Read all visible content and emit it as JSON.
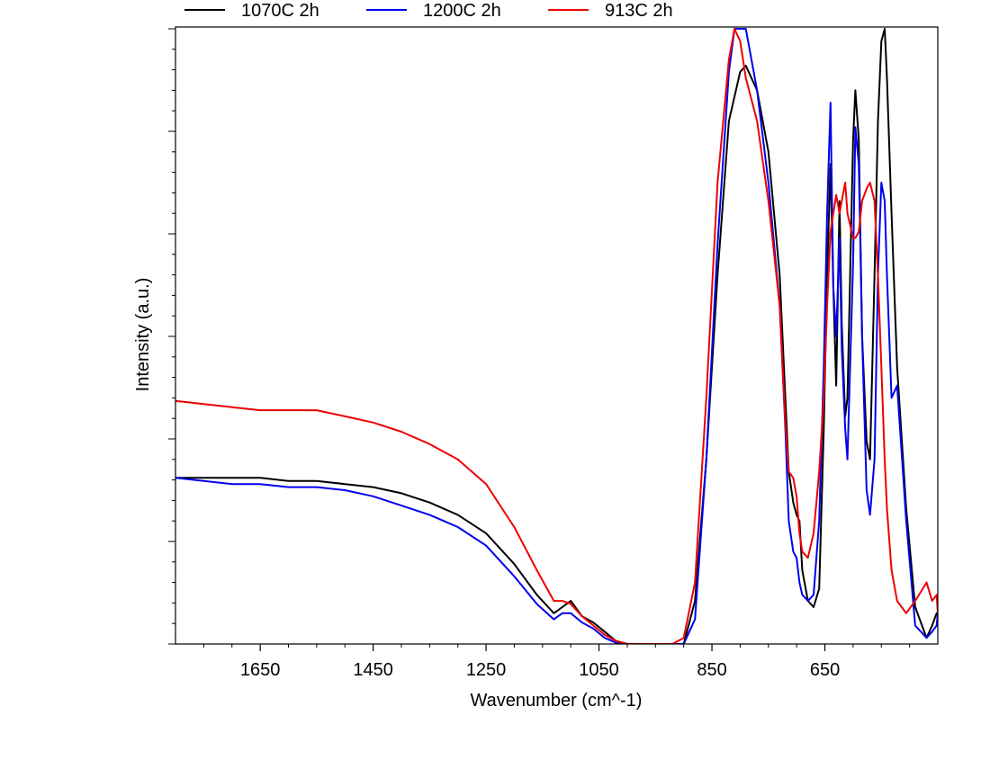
{
  "chart_data": {
    "type": "line",
    "title": "",
    "xlabel": "Wavenumber (cm^-1)",
    "ylabel": "Intensity (a.u.)",
    "x_reversed": true,
    "xlim": [
      1800,
      450
    ],
    "ylim": [
      0,
      1
    ],
    "xticks": [
      1650,
      1450,
      1250,
      1050,
      850,
      650
    ],
    "y_tick_labels_shown": false,
    "y_minor_ticks": true,
    "grid": false,
    "legend_position": "top-left-above",
    "series": [
      {
        "name": "1070C 2h",
        "color": "#000000",
        "x": [
          1800,
          1750,
          1700,
          1650,
          1600,
          1550,
          1500,
          1450,
          1400,
          1350,
          1300,
          1250,
          1200,
          1160,
          1130,
          1115,
          1100,
          1080,
          1060,
          1040,
          1020,
          1000,
          980,
          960,
          940,
          920,
          900,
          880,
          860,
          840,
          820,
          800,
          790,
          770,
          750,
          730,
          720,
          714,
          706,
          700,
          695,
          690,
          680,
          670,
          660,
          652,
          646,
          640,
          635,
          630,
          624,
          620,
          614,
          610,
          600,
          596,
          590,
          584,
          576,
          570,
          562,
          556,
          550,
          544,
          540,
          532,
          522,
          506,
          490,
          470,
          460,
          452,
          450
        ],
        "y": [
          0.27,
          0.27,
          0.27,
          0.27,
          0.265,
          0.265,
          0.26,
          0.255,
          0.245,
          0.23,
          0.21,
          0.18,
          0.13,
          0.08,
          0.05,
          0.06,
          0.07,
          0.045,
          0.035,
          0.02,
          0.005,
          0.0,
          0.0,
          0.0,
          0.0,
          0.0,
          0.0,
          0.07,
          0.3,
          0.6,
          0.85,
          0.93,
          0.94,
          0.9,
          0.8,
          0.6,
          0.4,
          0.28,
          0.23,
          0.21,
          0.2,
          0.12,
          0.07,
          0.06,
          0.09,
          0.35,
          0.6,
          0.78,
          0.58,
          0.42,
          0.72,
          0.52,
          0.37,
          0.4,
          0.82,
          0.9,
          0.82,
          0.5,
          0.33,
          0.3,
          0.6,
          0.85,
          0.98,
          1.0,
          0.92,
          0.7,
          0.45,
          0.22,
          0.06,
          0.01,
          0.03,
          0.05,
          0.05
        ]
      },
      {
        "name": "1200C 2h",
        "color": "#0000ee",
        "x": [
          1800,
          1750,
          1700,
          1650,
          1600,
          1550,
          1500,
          1450,
          1400,
          1350,
          1300,
          1250,
          1200,
          1160,
          1130,
          1115,
          1100,
          1080,
          1060,
          1040,
          1020,
          1000,
          980,
          960,
          940,
          920,
          900,
          880,
          860,
          840,
          820,
          810,
          800,
          790,
          770,
          750,
          730,
          720,
          714,
          706,
          700,
          695,
          690,
          680,
          670,
          660,
          652,
          646,
          640,
          635,
          630,
          624,
          620,
          614,
          610,
          600,
          596,
          590,
          584,
          576,
          570,
          562,
          556,
          550,
          544,
          540,
          532,
          522,
          506,
          490,
          470,
          460,
          452,
          450
        ],
        "y": [
          0.27,
          0.265,
          0.26,
          0.26,
          0.255,
          0.255,
          0.25,
          0.24,
          0.225,
          0.21,
          0.19,
          0.16,
          0.11,
          0.065,
          0.04,
          0.05,
          0.05,
          0.035,
          0.025,
          0.01,
          0.002,
          0.0,
          0.0,
          0.0,
          0.0,
          0.0,
          0.0,
          0.04,
          0.3,
          0.65,
          0.93,
          1.0,
          1.0,
          1.0,
          0.9,
          0.75,
          0.55,
          0.35,
          0.2,
          0.15,
          0.14,
          0.1,
          0.08,
          0.07,
          0.08,
          0.2,
          0.45,
          0.7,
          0.88,
          0.58,
          0.5,
          0.66,
          0.48,
          0.35,
          0.3,
          0.62,
          0.84,
          0.78,
          0.5,
          0.25,
          0.21,
          0.3,
          0.6,
          0.75,
          0.72,
          0.6,
          0.4,
          0.42,
          0.2,
          0.03,
          0.01,
          0.02,
          0.03,
          0.05
        ]
      },
      {
        "name": "913C 2h",
        "color": "#ee0000",
        "x": [
          1800,
          1750,
          1700,
          1650,
          1600,
          1550,
          1500,
          1450,
          1400,
          1350,
          1300,
          1250,
          1200,
          1160,
          1130,
          1115,
          1100,
          1080,
          1060,
          1040,
          1020,
          1000,
          980,
          960,
          940,
          920,
          900,
          880,
          860,
          840,
          820,
          810,
          800,
          790,
          770,
          750,
          730,
          720,
          714,
          706,
          700,
          695,
          690,
          680,
          670,
          660,
          652,
          646,
          640,
          635,
          630,
          624,
          620,
          614,
          610,
          600,
          596,
          590,
          584,
          576,
          570,
          562,
          556,
          550,
          544,
          540,
          532,
          522,
          506,
          490,
          470,
          460,
          452,
          450
        ],
        "y": [
          0.395,
          0.39,
          0.385,
          0.38,
          0.38,
          0.38,
          0.37,
          0.36,
          0.345,
          0.325,
          0.3,
          0.26,
          0.19,
          0.12,
          0.07,
          0.07,
          0.065,
          0.045,
          0.03,
          0.015,
          0.005,
          0.0,
          0.0,
          0.0,
          0.0,
          0.0,
          0.01,
          0.1,
          0.4,
          0.75,
          0.95,
          1.0,
          0.98,
          0.92,
          0.85,
          0.72,
          0.55,
          0.36,
          0.28,
          0.27,
          0.24,
          0.18,
          0.15,
          0.14,
          0.18,
          0.28,
          0.4,
          0.55,
          0.67,
          0.7,
          0.73,
          0.7,
          0.72,
          0.75,
          0.7,
          0.66,
          0.66,
          0.67,
          0.72,
          0.74,
          0.75,
          0.72,
          0.6,
          0.45,
          0.3,
          0.22,
          0.12,
          0.07,
          0.05,
          0.07,
          0.1,
          0.07,
          0.08,
          0.05
        ]
      }
    ]
  }
}
